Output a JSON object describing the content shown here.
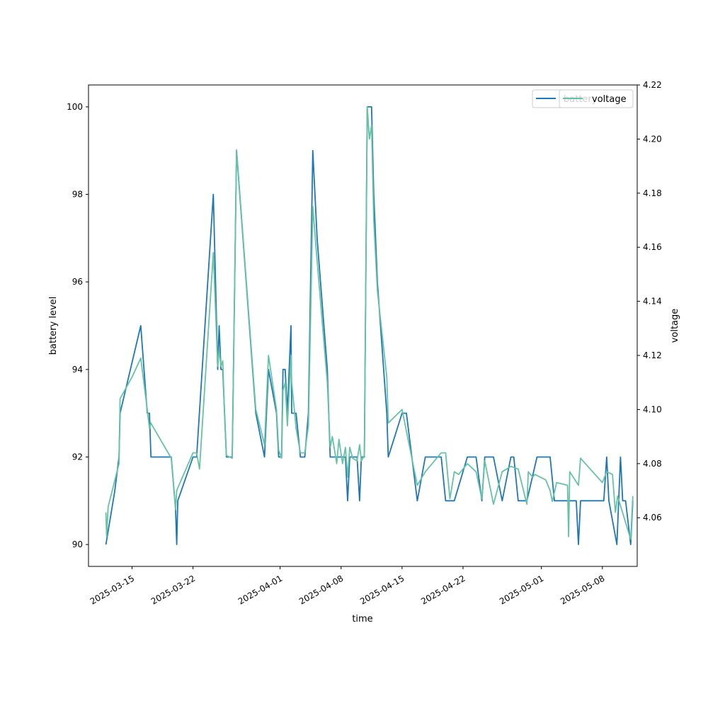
{
  "chart_data": {
    "type": "line",
    "xlabel": "time",
    "ylabel_left": "battery level",
    "ylabel_right": "voltage",
    "x_range": [
      "2025-03-10",
      "2025-05-12"
    ],
    "ylim_left": [
      89.5,
      100.5
    ],
    "ylim_right": [
      4.042,
      4.22
    ],
    "x_ticks": [
      "2025-03-15",
      "2025-03-22",
      "2025-04-01",
      "2025-04-08",
      "2025-04-15",
      "2025-04-22",
      "2025-05-01",
      "2025-05-08"
    ],
    "y_ticks_left": [
      90,
      92,
      94,
      96,
      98,
      100
    ],
    "y_ticks_right": [
      "4.06",
      "4.08",
      "4.10",
      "4.12",
      "4.14",
      "4.16",
      "4.18",
      "4.20",
      "4.22"
    ],
    "grid": false,
    "legend": {
      "placement": "top-right",
      "entries": [
        "battery",
        "voltage"
      ]
    },
    "series": [
      {
        "name": "battery",
        "axis": "left",
        "color": "#1f77b4",
        "points": [
          [
            "2025-03-12",
            90
          ],
          [
            "2025-03-13",
            91.2
          ],
          [
            "2025-03-13 12:00",
            92
          ],
          [
            "2025-03-13 15:00",
            93
          ],
          [
            "2025-03-16",
            95
          ],
          [
            "2025-03-16 18:00",
            93
          ],
          [
            "2025-03-17",
            93
          ],
          [
            "2025-03-17 04:00",
            92
          ],
          [
            "2025-03-19 12:00",
            92
          ],
          [
            "2025-03-20",
            90.8
          ],
          [
            "2025-03-20 03:00",
            90
          ],
          [
            "2025-03-20 06:00",
            91
          ],
          [
            "2025-03-22",
            92
          ],
          [
            "2025-03-22 10:00",
            92
          ],
          [
            "2025-03-24 08:00",
            98
          ],
          [
            "2025-03-24 20:00",
            94
          ],
          [
            "2025-03-25",
            95
          ],
          [
            "2025-03-25 05:00",
            94
          ],
          [
            "2025-03-25 10:00",
            94
          ],
          [
            "2025-03-25 15:00",
            93
          ],
          [
            "2025-03-25 20:00",
            92
          ],
          [
            "2025-03-26 12:00",
            92
          ],
          [
            "2025-03-27",
            99
          ],
          [
            "2025-03-29 05:00",
            93
          ],
          [
            "2025-03-30 05:00",
            92
          ],
          [
            "2025-03-30 16:00",
            94
          ],
          [
            "2025-03-31 14:00",
            93
          ],
          [
            "2025-03-31 20:00",
            92
          ],
          [
            "2025-04-01 04:00",
            92
          ],
          [
            "2025-04-01 08:00",
            94
          ],
          [
            "2025-04-01 14:00",
            94
          ],
          [
            "2025-04-01 20:00",
            93
          ],
          [
            "2025-04-02 06:00",
            95
          ],
          [
            "2025-04-02 08:00",
            93
          ],
          [
            "2025-04-02 20:00",
            93
          ],
          [
            "2025-04-03 08:00",
            92
          ],
          [
            "2025-04-03 20:00",
            92
          ],
          [
            "2025-04-04 06:00",
            93
          ],
          [
            "2025-04-04 18:00",
            99
          ],
          [
            "2025-04-05 06:00",
            97
          ],
          [
            "2025-04-06 10:00",
            94
          ],
          [
            "2025-04-06 18:00",
            92
          ],
          [
            "2025-04-07",
            92
          ],
          [
            "2025-04-07 12:00",
            92
          ],
          [
            "2025-04-07 18:00",
            92
          ],
          [
            "2025-04-08 04:00",
            92
          ],
          [
            "2025-04-08 12:00",
            92
          ],
          [
            "2025-04-08 18:00",
            91
          ],
          [
            "2025-04-09",
            92
          ],
          [
            "2025-04-09 08:00",
            92
          ],
          [
            "2025-04-09 20:00",
            92
          ],
          [
            "2025-04-10 03:00",
            91
          ],
          [
            "2025-04-10 08:00",
            92
          ],
          [
            "2025-04-10 16:00",
            92
          ],
          [
            "2025-04-11",
            100
          ],
          [
            "2025-04-11 12:00",
            100
          ],
          [
            "2025-04-11 18:00",
            98
          ],
          [
            "2025-04-12 04:00",
            96
          ],
          [
            "2025-04-13 06:00",
            93
          ],
          [
            "2025-04-13 10:00",
            92
          ],
          [
            "2025-04-15",
            93
          ],
          [
            "2025-04-15 12:00",
            93
          ],
          [
            "2025-04-16 18:00",
            91
          ],
          [
            "2025-04-17 16:00",
            92
          ],
          [
            "2025-04-19 12:00",
            92
          ],
          [
            "2025-04-20",
            91
          ],
          [
            "2025-04-21",
            91
          ],
          [
            "2025-04-22 12:00",
            92
          ],
          [
            "2025-04-23 12:00",
            92
          ],
          [
            "2025-04-24 04:00",
            91
          ],
          [
            "2025-04-24 12:00",
            92
          ],
          [
            "2025-04-25 12:00",
            92
          ],
          [
            "2025-04-26 12:00",
            91
          ],
          [
            "2025-04-27 12:00",
            92
          ],
          [
            "2025-04-27 20:00",
            92
          ],
          [
            "2025-04-28 08:00",
            91
          ],
          [
            "2025-04-29 08:00",
            91
          ],
          [
            "2025-04-30 12:00",
            92
          ],
          [
            "2025-05-02",
            92
          ],
          [
            "2025-05-02 12:00",
            91
          ],
          [
            "2025-05-05",
            91
          ],
          [
            "2025-05-05 06:00",
            90
          ],
          [
            "2025-05-05 12:00",
            91
          ],
          [
            "2025-05-07 18:00",
            91
          ],
          [
            "2025-05-08 04:00",
            91
          ],
          [
            "2025-05-08 12:00",
            92
          ],
          [
            "2025-05-08 18:00",
            91
          ],
          [
            "2025-05-09 16:00",
            90
          ],
          [
            "2025-05-10 02:00",
            92
          ],
          [
            "2025-05-10 08:00",
            91
          ],
          [
            "2025-05-10 16:00",
            91
          ],
          [
            "2025-05-11 06:00",
            90
          ],
          [
            "2025-05-11 12:00",
            91
          ]
        ]
      },
      {
        "name": "voltage",
        "axis": "right",
        "color": "#66c2a5",
        "points": [
          [
            "2025-03-12",
            4.062
          ],
          [
            "2025-03-12 02:00",
            4.053
          ],
          [
            "2025-03-12 06:00",
            4.064
          ],
          [
            "2025-03-13 12:00",
            4.08
          ],
          [
            "2025-03-13 15:00",
            4.104
          ],
          [
            "2025-03-15",
            4.112
          ],
          [
            "2025-03-16",
            4.119
          ],
          [
            "2025-03-16 18:00",
            4.1
          ],
          [
            "2025-03-17",
            4.093
          ],
          [
            "2025-03-17 04:00",
            4.095
          ],
          [
            "2025-03-17 08:00",
            4.094
          ],
          [
            "2025-03-19 12:00",
            4.082
          ],
          [
            "2025-03-20",
            4.063
          ],
          [
            "2025-03-20 03:00",
            4.07
          ],
          [
            "2025-03-20 06:00",
            4.071
          ],
          [
            "2025-03-22",
            4.084
          ],
          [
            "2025-03-22 10:00",
            4.084
          ],
          [
            "2025-03-22 18:00",
            4.078
          ],
          [
            "2025-03-24 08:00",
            4.158
          ],
          [
            "2025-03-24 20:00",
            4.116
          ],
          [
            "2025-03-25",
            4.122
          ],
          [
            "2025-03-25 05:00",
            4.116
          ],
          [
            "2025-03-25 10:00",
            4.118
          ],
          [
            "2025-03-25 15:00",
            4.098
          ],
          [
            "2025-03-25 20:00",
            4.083
          ],
          [
            "2025-03-26 12:00",
            4.082
          ],
          [
            "2025-03-27",
            4.196
          ],
          [
            "2025-03-29 05:00",
            4.1
          ],
          [
            "2025-03-30 05:00",
            4.087
          ],
          [
            "2025-03-30 16:00",
            4.12
          ],
          [
            "2025-03-31 14:00",
            4.1
          ],
          [
            "2025-03-31 20:00",
            4.085
          ],
          [
            "2025-04-01 04:00",
            4.082
          ],
          [
            "2025-04-01 08:00",
            4.107
          ],
          [
            "2025-04-01 14:00",
            4.11
          ],
          [
            "2025-04-01 20:00",
            4.094
          ],
          [
            "2025-04-02 06:00",
            4.12
          ],
          [
            "2025-04-02 08:00",
            4.11
          ],
          [
            "2025-04-02 20:00",
            4.093
          ],
          [
            "2025-04-03 08:00",
            4.084
          ],
          [
            "2025-04-03 20:00",
            4.084
          ],
          [
            "2025-04-04 06:00",
            4.094
          ],
          [
            "2025-04-04 18:00",
            4.175
          ],
          [
            "2025-04-05 06:00",
            4.155
          ],
          [
            "2025-04-06 10:00",
            4.11
          ],
          [
            "2025-04-06 18:00",
            4.086
          ],
          [
            "2025-04-07",
            4.09
          ],
          [
            "2025-04-07 12:00",
            4.08
          ],
          [
            "2025-04-07 18:00",
            4.089
          ],
          [
            "2025-04-08 04:00",
            4.08
          ],
          [
            "2025-04-08 12:00",
            4.086
          ],
          [
            "2025-04-08 18:00",
            4.075
          ],
          [
            "2025-04-09",
            4.086
          ],
          [
            "2025-04-09 08:00",
            4.082
          ],
          [
            "2025-04-09 20:00",
            4.081
          ],
          [
            "2025-04-10 03:00",
            4.087
          ],
          [
            "2025-04-10 08:00",
            4.081
          ],
          [
            "2025-04-10 16:00",
            4.083
          ],
          [
            "2025-04-11",
            4.212
          ],
          [
            "2025-04-11 06:00",
            4.2
          ],
          [
            "2025-04-11 12:00",
            4.205
          ],
          [
            "2025-04-11 18:00",
            4.17
          ],
          [
            "2025-04-12 04:00",
            4.144
          ],
          [
            "2025-04-13 06:00",
            4.112
          ],
          [
            "2025-04-13 10:00",
            4.095
          ],
          [
            "2025-04-15",
            4.1
          ],
          [
            "2025-04-16 18:00",
            4.072
          ],
          [
            "2025-04-17 16:00",
            4.077
          ],
          [
            "2025-04-19 12:00",
            4.084
          ],
          [
            "2025-04-20",
            4.084
          ],
          [
            "2025-04-20 12:00",
            4.067
          ],
          [
            "2025-04-21",
            4.077
          ],
          [
            "2025-04-21 12:00",
            4.076
          ],
          [
            "2025-04-22 12:00",
            4.08
          ],
          [
            "2025-04-23 12:00",
            4.077
          ],
          [
            "2025-04-24 04:00",
            4.067
          ],
          [
            "2025-04-24 12:00",
            4.081
          ],
          [
            "2025-04-25 12:00",
            4.065
          ],
          [
            "2025-04-26 12:00",
            4.077
          ],
          [
            "2025-04-27 12:00",
            4.079
          ],
          [
            "2025-04-28 08:00",
            4.078
          ],
          [
            "2025-04-29 08:00",
            4.065
          ],
          [
            "2025-04-29 12:00",
            4.077
          ],
          [
            "2025-04-30",
            4.075
          ],
          [
            "2025-04-30 06:00",
            4.076
          ],
          [
            "2025-05-01 12:00",
            4.074
          ],
          [
            "2025-05-02",
            4.07
          ],
          [
            "2025-05-02 06:00",
            4.066
          ],
          [
            "2025-05-02 18:00",
            4.073
          ],
          [
            "2025-05-04",
            4.072
          ],
          [
            "2025-05-04 03:00",
            4.053
          ],
          [
            "2025-05-04 06:00",
            4.077
          ],
          [
            "2025-05-05 06:00",
            4.072
          ],
          [
            "2025-05-05 12:00",
            4.082
          ],
          [
            "2025-05-08",
            4.073
          ],
          [
            "2025-05-08 12:00",
            4.077
          ],
          [
            "2025-05-09 04:00",
            4.076
          ],
          [
            "2025-05-09 12:00",
            4.062
          ],
          [
            "2025-05-09 18:00",
            4.068
          ],
          [
            "2025-05-11 06:00",
            4.052
          ],
          [
            "2025-05-11 12:00",
            4.068
          ]
        ]
      }
    ]
  }
}
